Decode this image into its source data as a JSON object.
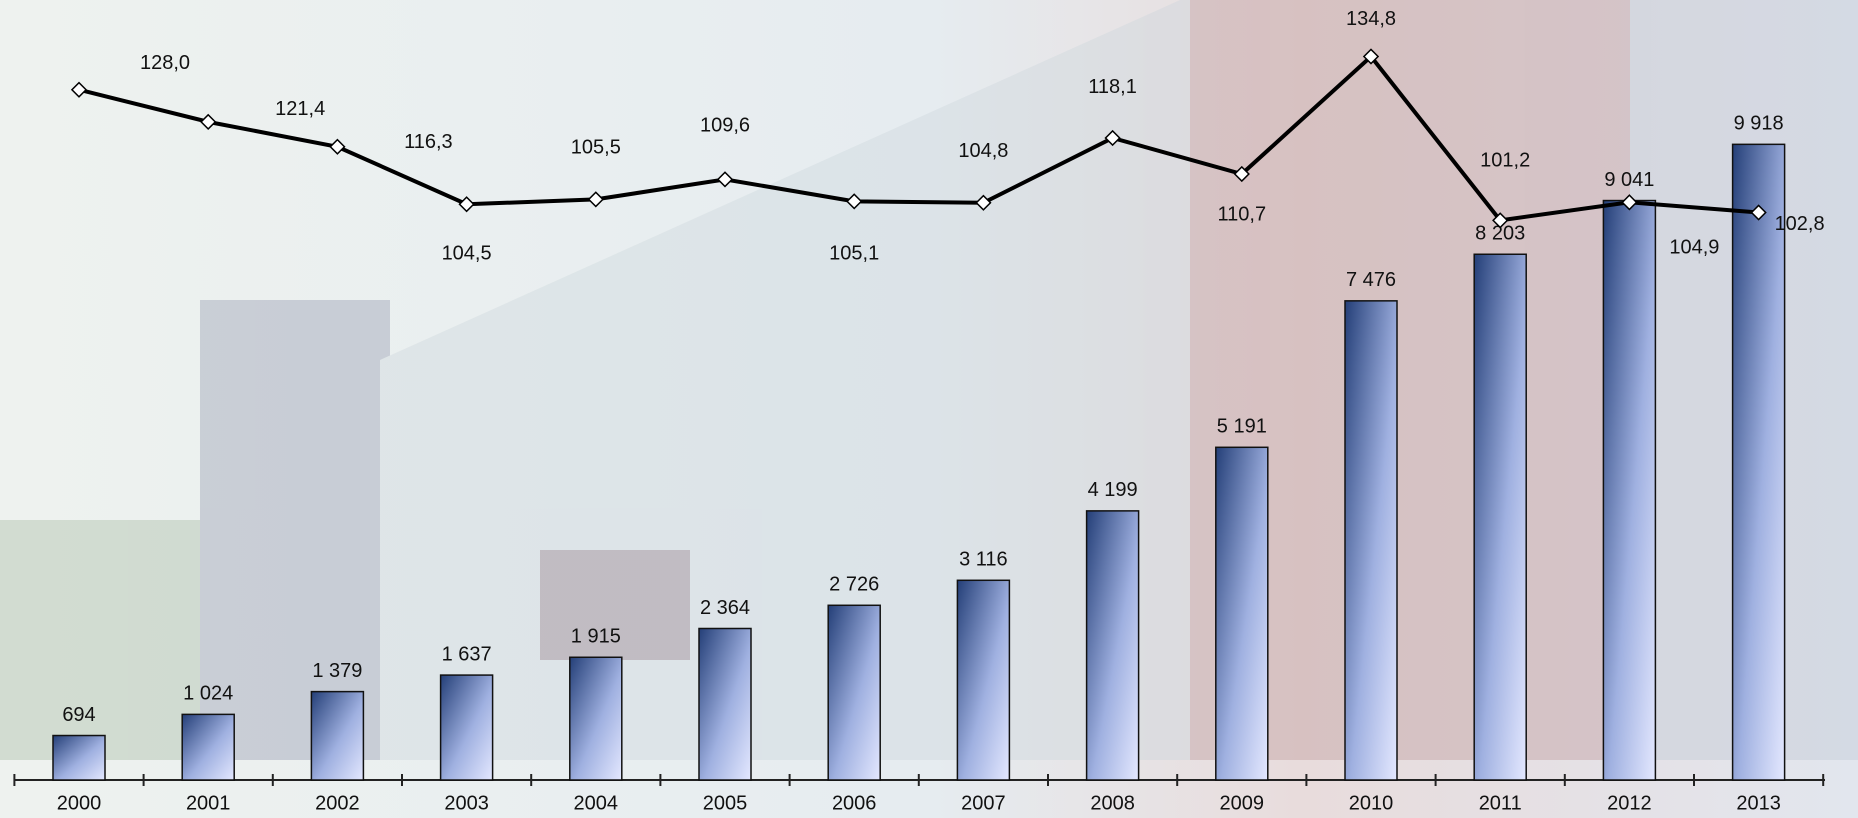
{
  "chart_data": {
    "type": "bar-line",
    "categories": [
      "2000",
      "2001",
      "2002",
      "2003",
      "2004",
      "2005",
      "2006",
      "2007",
      "2008",
      "2009",
      "2010",
      "2011",
      "2012",
      "2013"
    ],
    "series": [
      {
        "type": "bar",
        "color": "#2f4a80",
        "values": [
          694,
          1024,
          1379,
          1637,
          1915,
          2364,
          2726,
          3116,
          4199,
          5191,
          7476,
          8203,
          9041,
          9918
        ],
        "value_labels": [
          "694",
          "1 024",
          "1 379",
          "1 637",
          "1 915",
          "2 364",
          "2 726",
          "3 116",
          "4 199",
          "5 191",
          "7 476",
          "8 203",
          "9 041",
          "9 918"
        ]
      },
      {
        "type": "line",
        "axis": "y2",
        "color": "#000000",
        "values": [
          128.0,
          121.4,
          116.3,
          104.5,
          105.5,
          109.6,
          105.1,
          104.8,
          118.1,
          110.7,
          134.8,
          101.2,
          104.9,
          102.8
        ],
        "value_labels": [
          "128,0",
          "121,4",
          "116,3",
          "104,5",
          "105,5",
          "109,6",
          "105,1",
          "104,8",
          "118,1",
          "110,7",
          "134,8",
          "101,2",
          "104,9",
          "102,8"
        ]
      }
    ],
    "ylim": [
      0,
      12170
    ],
    "y2lim": [
      -13.6,
      146.4
    ]
  }
}
